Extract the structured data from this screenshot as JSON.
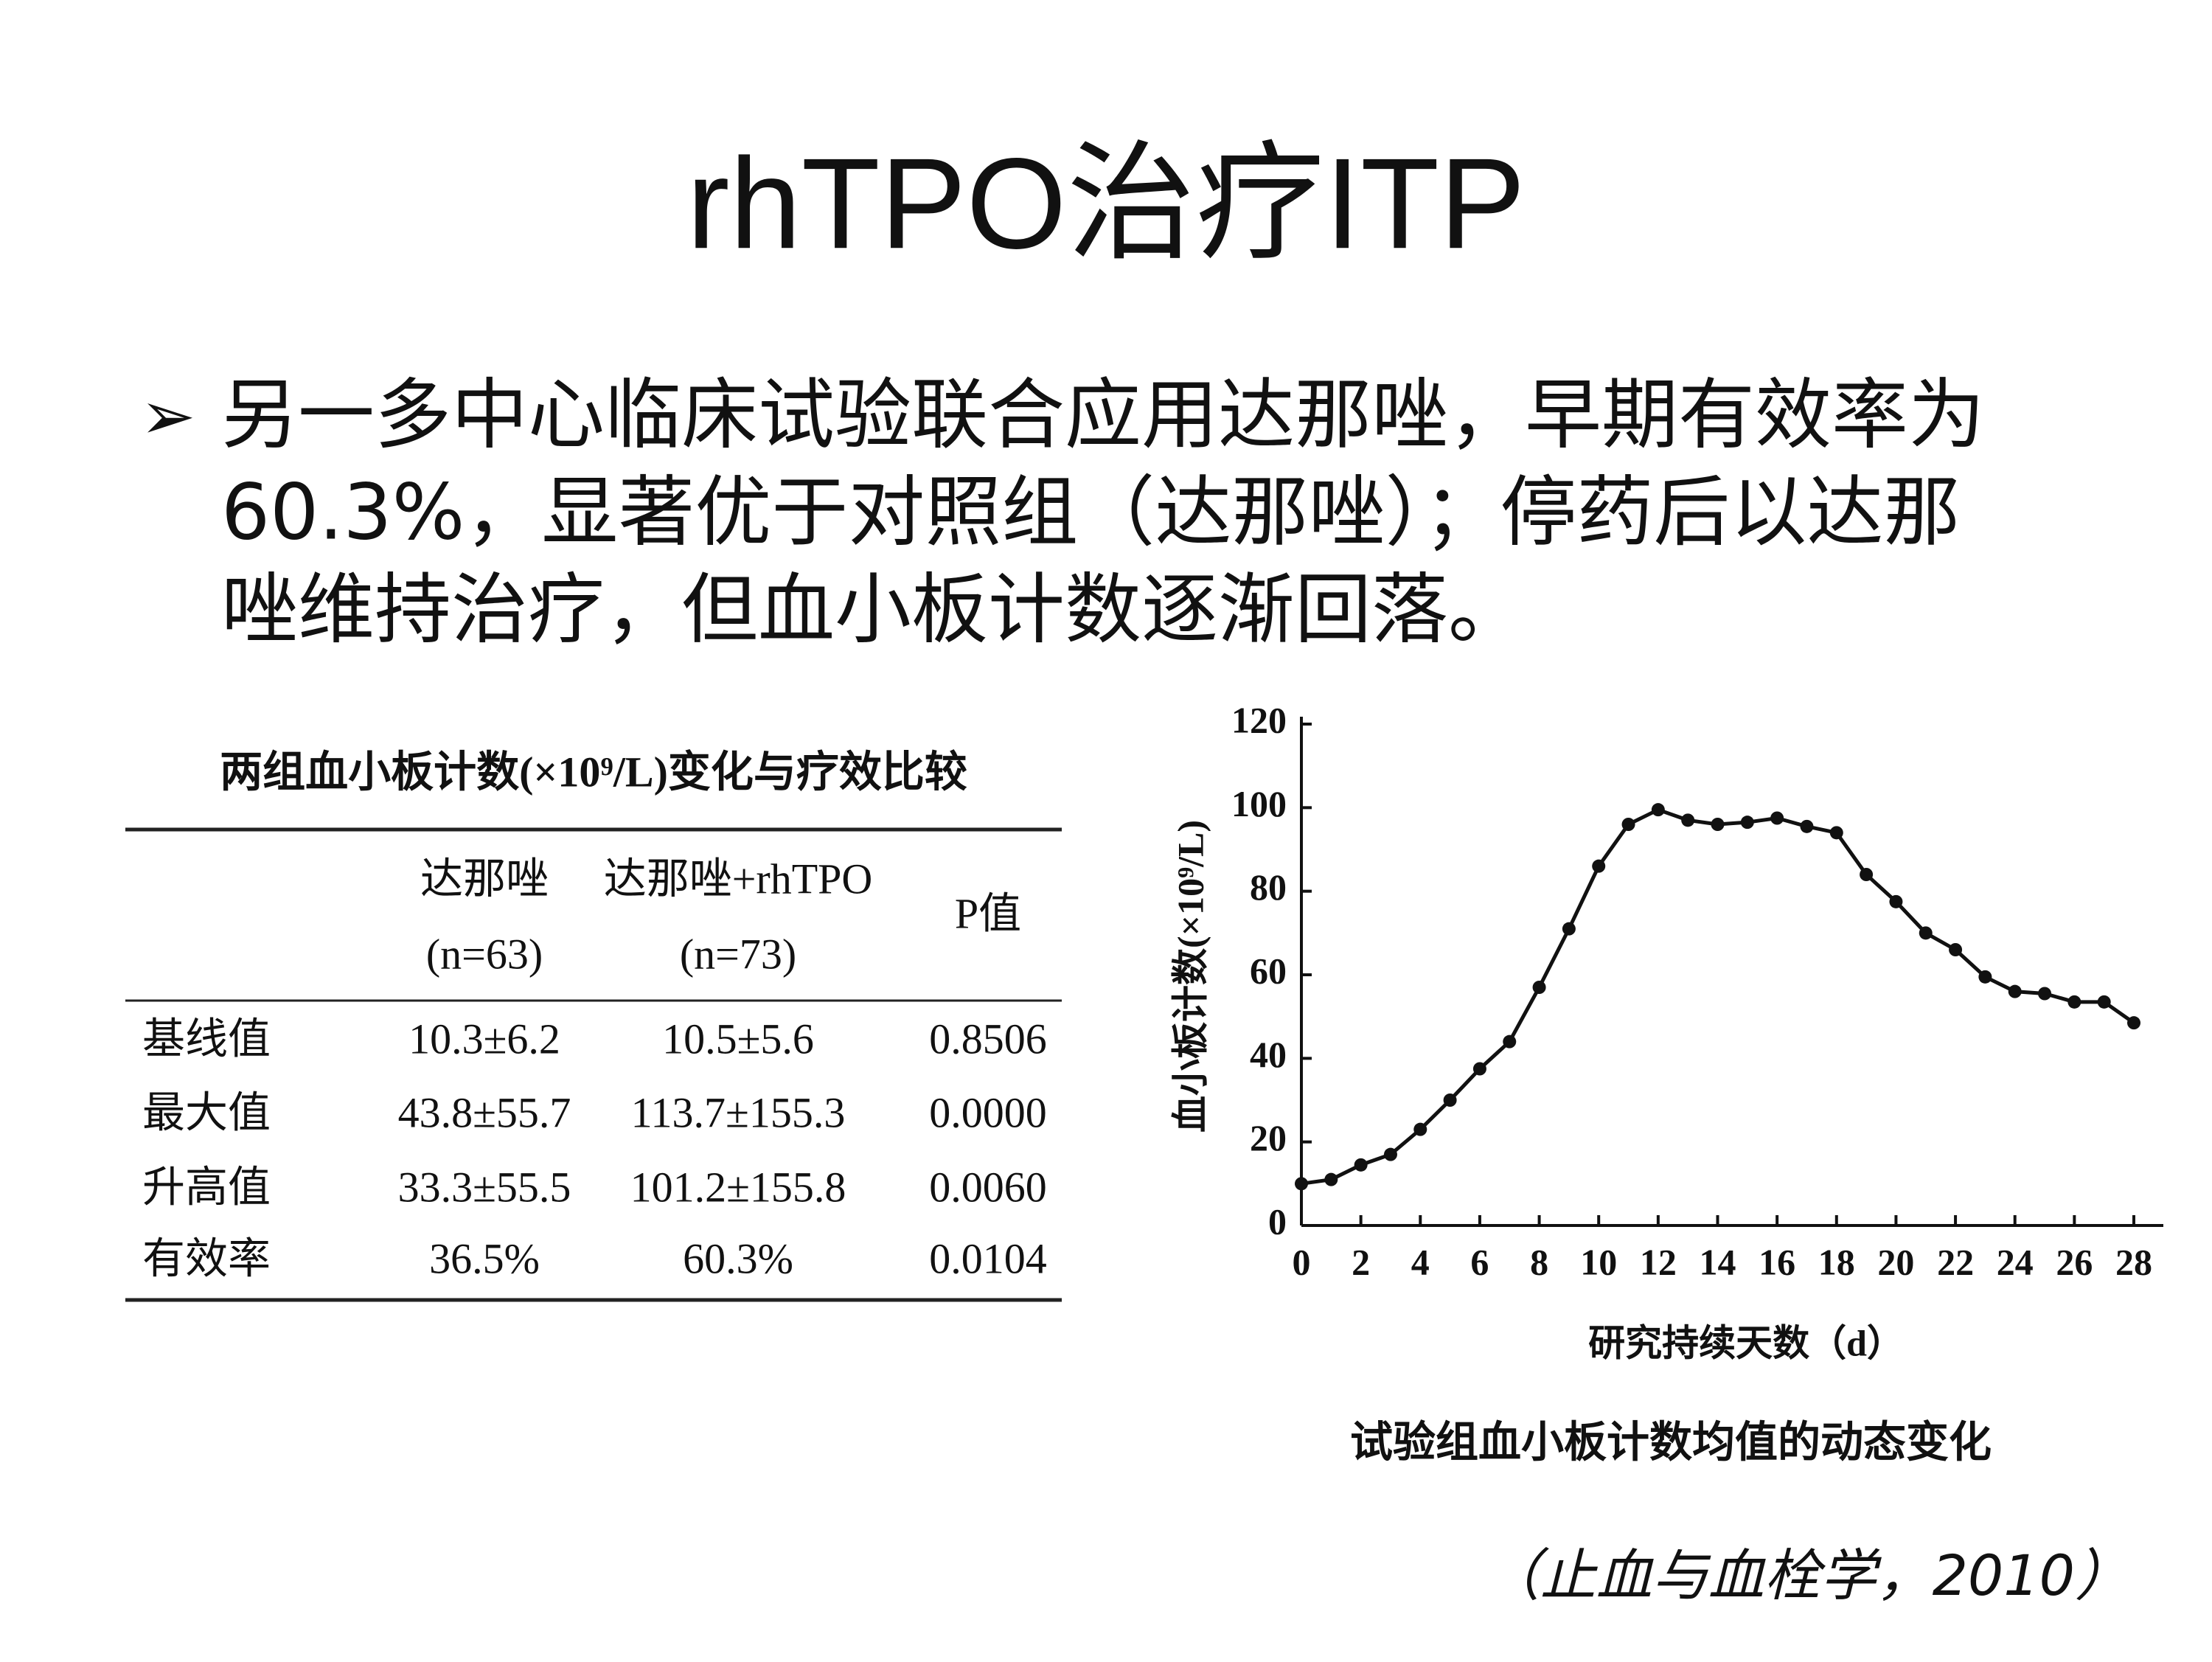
{
  "title": "rhTPO治疗ITP",
  "bullet_lines": [
    "另一多中心临床试验联合应用达那唑，早期有效率为",
    "60.3%，显著优于对照组（达那唑）；停药后以达那",
    "唑维持治疗，但血小板计数逐渐回落。"
  ],
  "table": {
    "title": "两组血小板计数(×10⁹/L)变化与疗效比较",
    "headers": [
      {
        "name": "达那唑",
        "sub": "(n=63)"
      },
      {
        "name": "达那唑+rhTPO",
        "sub": "(n=73)"
      },
      {
        "name": "P值"
      }
    ],
    "rows": [
      [
        "基线值",
        "10.3±6.2",
        "10.5±5.6",
        "0.8506"
      ],
      [
        "最大值",
        "43.8±55.7",
        "113.7±155.3",
        "0.0000"
      ],
      [
        "升高值",
        "33.3±55.5",
        "101.2±155.8",
        "0.0060"
      ],
      [
        "有效率",
        "36.5%",
        "60.3%",
        "0.0104"
      ]
    ]
  },
  "chart_data": {
    "type": "line",
    "caption": "试验组血小板计数均值的动态变化",
    "x_label": "研究持续天数（d）",
    "y_label": "血小板计数(×10⁹/L)",
    "x": [
      0,
      1,
      2,
      3,
      4,
      5,
      6,
      7,
      8,
      9,
      10,
      11,
      12,
      13,
      14,
      15,
      16,
      17,
      18,
      19,
      20,
      21,
      22,
      23,
      24,
      25,
      26,
      27,
      28
    ],
    "series": [
      {
        "color": "#111111",
        "values": [
          10,
          11,
          14.5,
          17,
          23,
          30,
          37.5,
          44,
          57,
          71,
          86,
          96,
          99.5,
          97,
          96,
          96.5,
          97.5,
          95.5,
          94,
          84,
          77.5,
          70,
          66,
          59.5,
          56,
          55.5,
          53.5,
          53.5,
          48.5
        ]
      }
    ],
    "xlim": [
      0,
      28
    ],
    "xticks": [
      0,
      2,
      4,
      6,
      8,
      10,
      12,
      14,
      16,
      18,
      20,
      22,
      24,
      26,
      28
    ],
    "ylim": [
      0,
      120
    ],
    "yticks": [
      0,
      20,
      40,
      60,
      80,
      100,
      120
    ]
  },
  "citation": "（止血与血栓学，2010）"
}
